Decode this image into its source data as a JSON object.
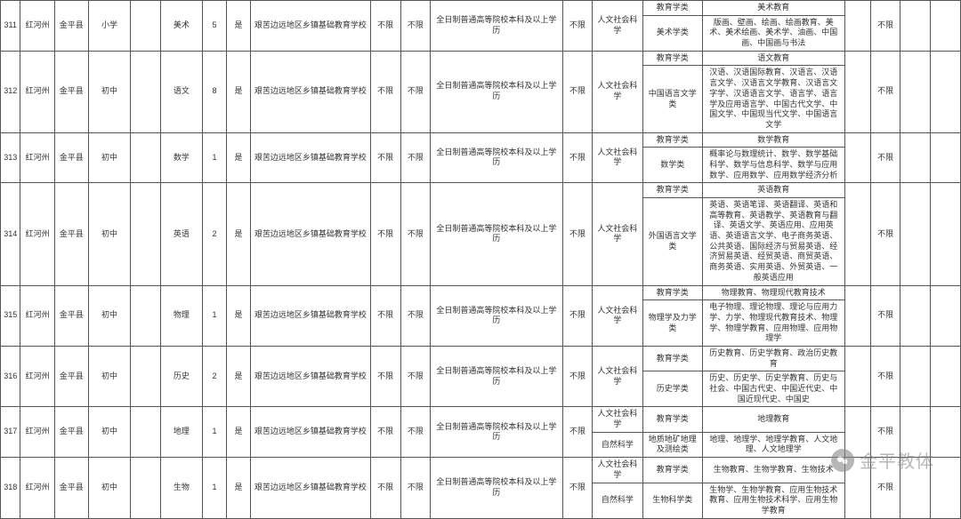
{
  "watermark": "金平教体",
  "common": {
    "state": "红河州",
    "county": "金平县",
    "yes": "是",
    "schoolType": "艰苦边远地区乡镇基础教育学校",
    "unlimited": "不限",
    "eduReq": "全日制普通高等院校本科及以上学历",
    "humanities": "人文社会科学",
    "naturalSci": "自然科学",
    "eduClass": "教育学类"
  },
  "rows": [
    {
      "idx": "311",
      "level": "小学",
      "subject": "美术",
      "count": "5",
      "sub": [
        {
          "cat": "edu",
          "subcat": "@edu",
          "majors": "美术教育"
        },
        {
          "cat": "",
          "subcat": "美术学类",
          "majors": "版画、壁画、绘画、绘画教育、美术、美术绘画、美术学、油画、中国画、中国画与书法"
        }
      ]
    },
    {
      "idx": "312",
      "level": "初中",
      "subject": "语文",
      "count": "8",
      "sub": [
        {
          "cat": "edu",
          "subcat": "@edu",
          "majors": "语文教育"
        },
        {
          "cat": "",
          "subcat": "中国语言文学类",
          "majors": "汉语、汉语国际教育、汉语言、汉语言文学、汉语言文学教育、汉语言文字学、汉语语言文学、语言学、语言学及应用语言学、中国古代文学、中国文学、中国现当代文学、中国语言文学"
        }
      ]
    },
    {
      "idx": "313",
      "level": "初中",
      "subject": "数学",
      "count": "1",
      "sub": [
        {
          "cat": "edu",
          "subcat": "@edu",
          "majors": "数学教育"
        },
        {
          "cat": "",
          "subcat": "数学类",
          "majors": "概率论与数理统计、数学、数学基础科学、数学与信息科学、数学与应用数学、应用数学、应用数学经济分析"
        }
      ]
    },
    {
      "idx": "314",
      "level": "初中",
      "subject": "英语",
      "count": "2",
      "sub": [
        {
          "cat": "edu",
          "subcat": "@edu",
          "majors": "英语教育"
        },
        {
          "cat": "",
          "subcat": "外国语言文学类",
          "majors": "英语、英语笔译、英语翻译、英语和高等教育、英语教学、英语教育与翻译、英语文学、英语应用、应用英语、英语语言文学、电子商务英语、公共英语、国际经济与贸易英语、经济贸易英语、经贸英语、商贸英语、商务英语、实用英语、外贸英语、一般英语应用"
        }
      ]
    },
    {
      "idx": "315",
      "level": "初中",
      "subject": "物理",
      "count": "1",
      "sub": [
        {
          "cat": "edu",
          "subcat": "@edu",
          "majors": "物理教育、物理现代教育技术"
        },
        {
          "cat": "",
          "subcat": "物理学及力学类",
          "majors": "电子物理、理论物理、理论与应用力学、力学、物理现代教育技术、物理学、物理学教育、应用物理、应用物理学"
        }
      ]
    },
    {
      "idx": "316",
      "level": "初中",
      "subject": "历史",
      "count": "2",
      "sub": [
        {
          "cat": "edu",
          "subcat": "@edu",
          "majors": "历史教育、历史学教育、政治历史教育"
        },
        {
          "cat": "",
          "subcat": "历史学类",
          "majors": "历史、历史学、历史学教育、历史与社会、中国古代史、中国近代史、中国近现代史、中国史"
        }
      ]
    },
    {
      "idx": "317",
      "level": "初中",
      "subject": "地理",
      "count": "1",
      "sub": [
        {
          "cat": "hum",
          "subcat": "@edu",
          "majors": "地理教育"
        },
        {
          "cat": "nat",
          "subcat": "地质地矿地理及测绘类",
          "majors": "地理、地理学、地理学教育、人文地理、人文地理学"
        }
      ]
    },
    {
      "idx": "318",
      "level": "初中",
      "subject": "生物",
      "count": "1",
      "sub": [
        {
          "cat": "hum",
          "subcat": "@edu",
          "majors": "生物教育、生物学教育、生物技术"
        },
        {
          "cat": "nat",
          "subcat": "生物科学类",
          "majors": "生物学、生物学教育、应用生物技术教育、应用生物技术科学、应用生物学教育"
        }
      ]
    }
  ]
}
